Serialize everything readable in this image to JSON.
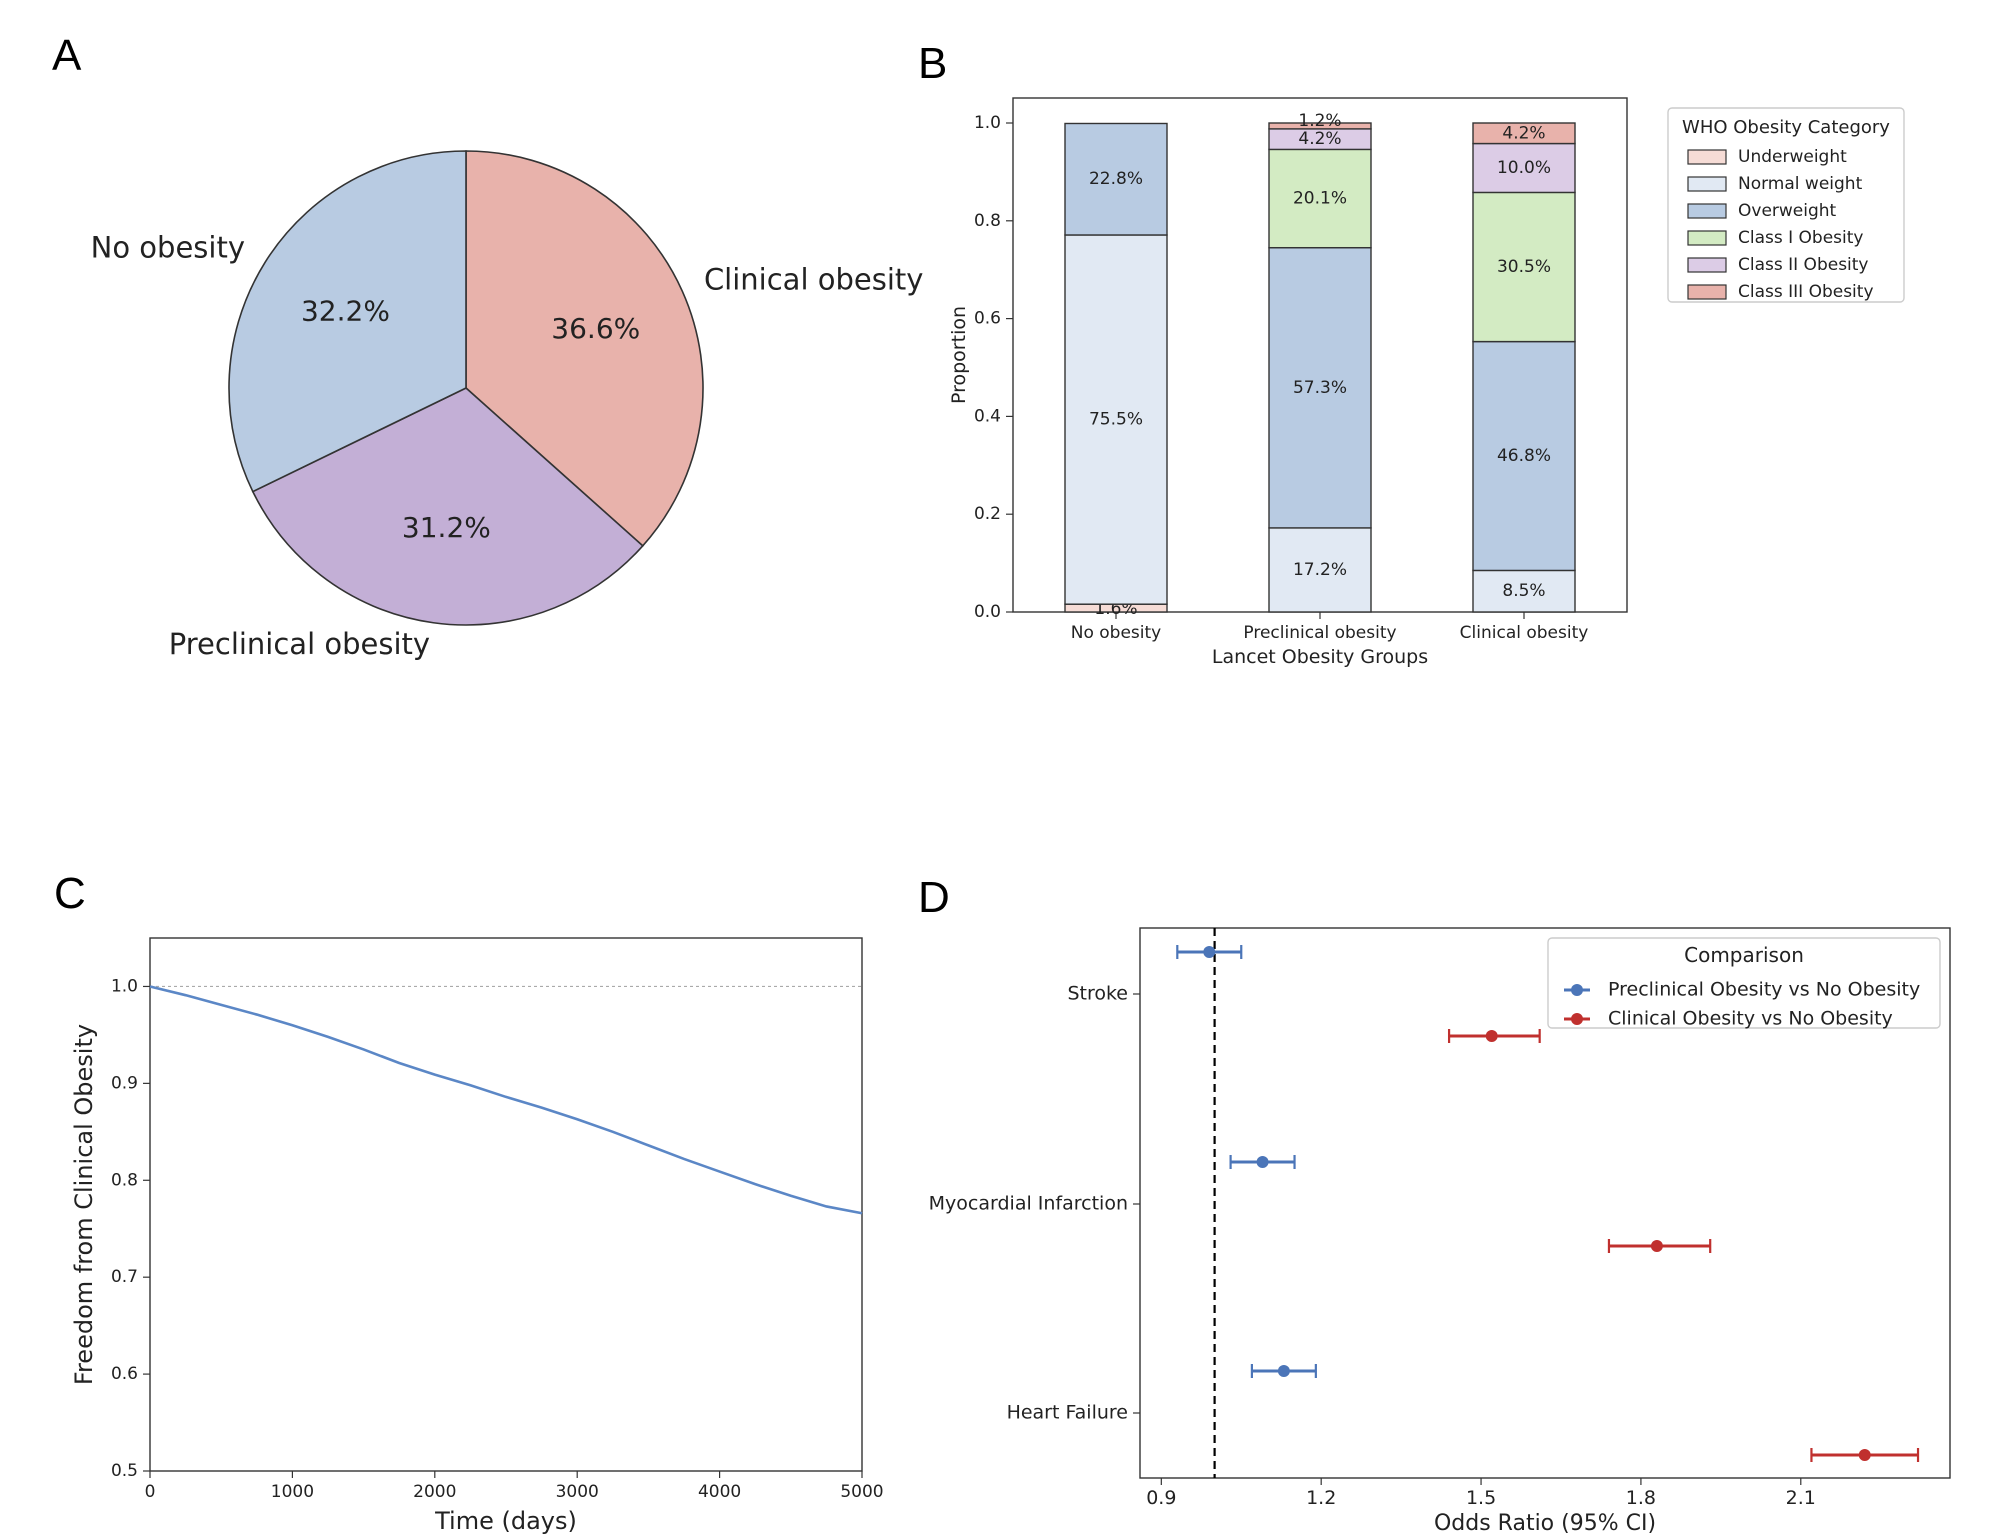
{
  "panels": {
    "a": {
      "letter": "A"
    },
    "b": {
      "letter": "B"
    },
    "c": {
      "letter": "C"
    },
    "d": {
      "letter": "D"
    }
  },
  "chart_data": [
    {
      "id": "A",
      "type": "pie",
      "labels": [
        "Clinical obesity",
        "Preclinical obesity",
        "No obesity"
      ],
      "values": [
        36.6,
        31.2,
        32.2
      ],
      "value_labels": [
        "36.6%",
        "31.2%",
        "32.2%"
      ],
      "colors": [
        "#e8b2ab",
        "#c3afd6",
        "#b8cbe2"
      ],
      "start_angle": "12 o'clock, clockwise"
    },
    {
      "id": "B",
      "type": "bar",
      "stacked": true,
      "title": "",
      "xlabel": "Lancet Obesity Groups",
      "ylabel": "Proportion",
      "categories": [
        "No obesity",
        "Preclinical obesity",
        "Clinical obesity"
      ],
      "ylim": [
        0,
        1.0
      ],
      "yticks": [
        "0.0",
        "0.2",
        "0.4",
        "0.6",
        "0.8",
        "1.0"
      ],
      "series": [
        {
          "name": "Underweight",
          "color": "#f6dcd6",
          "values": [
            0.016,
            0.0,
            0.0
          ],
          "labels": [
            "1.6%",
            "",
            ""
          ]
        },
        {
          "name": "Normal weight",
          "color": "#e1e9f3",
          "values": [
            0.755,
            0.172,
            0.085
          ],
          "labels": [
            "75.5%",
            "17.2%",
            "8.5%"
          ]
        },
        {
          "name": "Overweight",
          "color": "#b8cbe2",
          "values": [
            0.228,
            0.573,
            0.468
          ],
          "labels": [
            "22.8%",
            "57.3%",
            "46.8%"
          ]
        },
        {
          "name": "Class I Obesity",
          "color": "#d3ebc3",
          "values": [
            0.0,
            0.201,
            0.305
          ],
          "labels": [
            "",
            "20.1%",
            "30.5%"
          ]
        },
        {
          "name": "Class II Obesity",
          "color": "#dccce6",
          "values": [
            0.0,
            0.042,
            0.1
          ],
          "labels": [
            "",
            "4.2%",
            "10.0%"
          ]
        },
        {
          "name": "Class III Obesity",
          "color": "#e8b2ab",
          "values": [
            0.0,
            0.012,
            0.042
          ],
          "labels": [
            "",
            "1.2%",
            "4.2%"
          ]
        }
      ],
      "legend_title": "WHO Obesity Category",
      "legend_position": "outside right, top"
    },
    {
      "id": "C",
      "type": "line",
      "xlabel": "Time (days)",
      "ylabel": "Freedom from Clinical Obesity",
      "xlim": [
        0,
        5000
      ],
      "ylim": [
        0.5,
        1.05
      ],
      "xticks": [
        "0",
        "1000",
        "2000",
        "3000",
        "4000",
        "5000"
      ],
      "yticks": [
        "0.5",
        "0.6",
        "0.7",
        "0.8",
        "0.9",
        "1.0"
      ],
      "reference_line_y": 1.0,
      "series": [
        {
          "name": "Freedom from Clinical Obesity",
          "color": "#5b87c6",
          "x": [
            0,
            250,
            500,
            750,
            1000,
            1250,
            1500,
            1750,
            2000,
            2250,
            2500,
            2750,
            3000,
            3250,
            3500,
            3750,
            4000,
            4250,
            4500,
            4750,
            5000
          ],
          "y": [
            1.0,
            0.991,
            0.981,
            0.971,
            0.96,
            0.948,
            0.935,
            0.921,
            0.909,
            0.898,
            0.886,
            0.875,
            0.863,
            0.85,
            0.836,
            0.822,
            0.809,
            0.796,
            0.784,
            0.773,
            0.766
          ]
        }
      ]
    },
    {
      "id": "D",
      "type": "scatter",
      "subtype": "forest plot",
      "xlabel": "Odds Ratio (95% CI)",
      "xlim": [
        0.86,
        2.38
      ],
      "xticks": [
        "0.9",
        "1.2",
        "1.5",
        "1.8",
        "2.1"
      ],
      "reference_line_x": 1.0,
      "categories": [
        "Stroke",
        "Myocardial Infarction",
        "Heart Failure"
      ],
      "legend_title": "Comparison",
      "legend_position": "top-right",
      "series": [
        {
          "name": "Preclinical Obesity vs No Obesity",
          "color": "#4b75b8",
          "estimates": [
            0.99,
            1.09,
            1.13
          ],
          "ci_low": [
            0.93,
            1.03,
            1.07
          ],
          "ci_high": [
            1.05,
            1.15,
            1.19
          ]
        },
        {
          "name": "Clinical Obesity vs No Obesity",
          "color": "#c0302e",
          "estimates": [
            1.52,
            1.83,
            2.22
          ],
          "ci_low": [
            1.44,
            1.74,
            2.12
          ],
          "ci_high": [
            1.61,
            1.93,
            2.32
          ]
        }
      ]
    }
  ]
}
